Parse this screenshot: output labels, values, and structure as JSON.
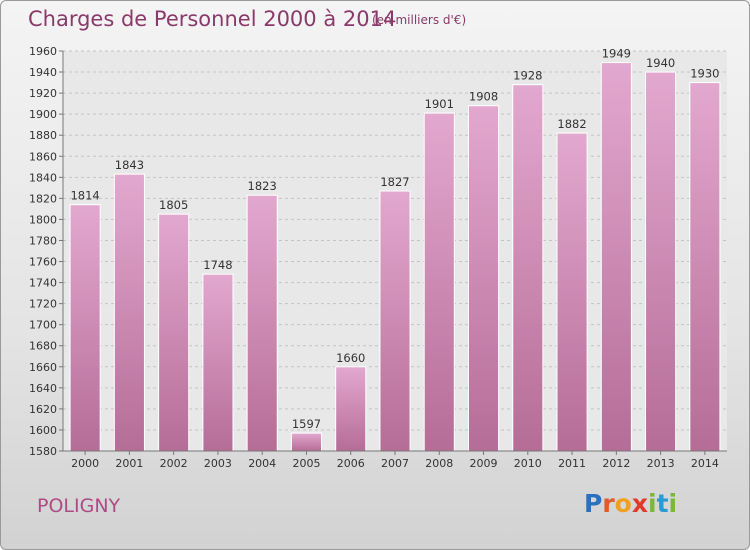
{
  "chart_data": {
    "type": "bar",
    "title": "Charges de Personnel 2000 à 2014",
    "subtitle": "(en milliers d'€)",
    "categories": [
      "2000",
      "2001",
      "2002",
      "2003",
      "2004",
      "2005",
      "2006",
      "2007",
      "2008",
      "2009",
      "2010",
      "2011",
      "2012",
      "2013",
      "2014"
    ],
    "values": [
      1814,
      1843,
      1805,
      1748,
      1823,
      1597,
      1660,
      1827,
      1901,
      1908,
      1928,
      1882,
      1949,
      1940,
      1930
    ],
    "ylim": [
      1580,
      1960
    ],
    "yticks": [
      1580,
      1600,
      1620,
      1640,
      1660,
      1680,
      1700,
      1720,
      1740,
      1760,
      1780,
      1800,
      1820,
      1840,
      1860,
      1880,
      1900,
      1920,
      1940,
      1960
    ],
    "grid": true,
    "bar_color_top": "#e3a8cf",
    "bar_color_bottom": "#b56d97"
  },
  "footer": {
    "commune": "POLIGNY",
    "logo_letters": [
      {
        "ch": "P",
        "color": "#2b6fc0"
      },
      {
        "ch": "r",
        "color": "#e05a2a"
      },
      {
        "ch": "o",
        "color": "#f0a020"
      },
      {
        "ch": "x",
        "color": "#e03a2a"
      },
      {
        "ch": "i",
        "color": "#7ab83a"
      },
      {
        "ch": "t",
        "color": "#2b9ad0"
      },
      {
        "ch": "i",
        "color": "#7ab83a"
      }
    ]
  }
}
